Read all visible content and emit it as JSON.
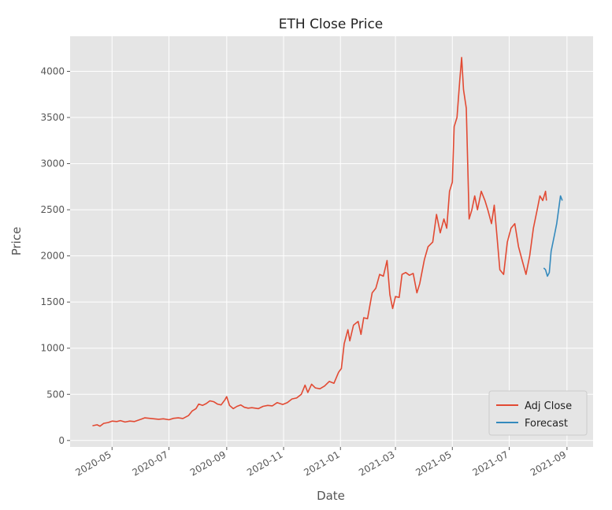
{
  "chart_data": {
    "type": "line",
    "title": "ETH Close Price",
    "xlabel": "Date",
    "ylabel": "Price",
    "x_tick_labels": [
      "2020-05",
      "2020-07",
      "2020-09",
      "2020-11",
      "2021-01",
      "2021-03",
      "2021-05",
      "2021-07",
      "2021-09"
    ],
    "y_ticks": [
      0,
      500,
      1000,
      1500,
      2000,
      2500,
      3000,
      3500,
      4000
    ],
    "xlim": [
      "2020-03-17",
      "2021-09-29"
    ],
    "ylim": [
      -70,
      4380
    ],
    "grid": true,
    "legend_position": "bottom-right",
    "series": [
      {
        "name": "Adj Close",
        "color": "#e24a33",
        "points": [
          [
            "2020-04-10",
            160
          ],
          [
            "2020-04-15",
            170
          ],
          [
            "2020-04-18",
            155
          ],
          [
            "2020-04-22",
            185
          ],
          [
            "2020-04-27",
            195
          ],
          [
            "2020-05-01",
            210
          ],
          [
            "2020-05-06",
            205
          ],
          [
            "2020-05-10",
            215
          ],
          [
            "2020-05-15",
            200
          ],
          [
            "2020-05-20",
            210
          ],
          [
            "2020-05-25",
            205
          ],
          [
            "2020-06-01",
            230
          ],
          [
            "2020-06-05",
            245
          ],
          [
            "2020-06-10",
            240
          ],
          [
            "2020-06-15",
            235
          ],
          [
            "2020-06-20",
            230
          ],
          [
            "2020-06-25",
            235
          ],
          [
            "2020-07-01",
            225
          ],
          [
            "2020-07-06",
            240
          ],
          [
            "2020-07-11",
            245
          ],
          [
            "2020-07-16",
            238
          ],
          [
            "2020-07-22",
            270
          ],
          [
            "2020-07-26",
            320
          ],
          [
            "2020-07-30",
            345
          ],
          [
            "2020-08-02",
            395
          ],
          [
            "2020-08-06",
            380
          ],
          [
            "2020-08-10",
            400
          ],
          [
            "2020-08-14",
            430
          ],
          [
            "2020-08-18",
            420
          ],
          [
            "2020-08-22",
            395
          ],
          [
            "2020-08-26",
            385
          ],
          [
            "2020-08-30",
            440
          ],
          [
            "2020-09-01",
            475
          ],
          [
            "2020-09-04",
            380
          ],
          [
            "2020-09-08",
            345
          ],
          [
            "2020-09-12",
            370
          ],
          [
            "2020-09-16",
            385
          ],
          [
            "2020-09-20",
            360
          ],
          [
            "2020-09-24",
            350
          ],
          [
            "2020-09-28",
            355
          ],
          [
            "2020-10-05",
            345
          ],
          [
            "2020-10-10",
            370
          ],
          [
            "2020-10-15",
            380
          ],
          [
            "2020-10-20",
            375
          ],
          [
            "2020-10-25",
            410
          ],
          [
            "2020-10-31",
            390
          ],
          [
            "2020-11-05",
            410
          ],
          [
            "2020-11-10",
            450
          ],
          [
            "2020-11-15",
            460
          ],
          [
            "2020-11-20",
            500
          ],
          [
            "2020-11-24",
            600
          ],
          [
            "2020-11-27",
            520
          ],
          [
            "2020-12-01",
            610
          ],
          [
            "2020-12-05",
            570
          ],
          [
            "2020-12-10",
            560
          ],
          [
            "2020-12-15",
            590
          ],
          [
            "2020-12-20",
            640
          ],
          [
            "2020-12-25",
            620
          ],
          [
            "2020-12-30",
            740
          ],
          [
            "2021-01-02",
            780
          ],
          [
            "2021-01-05",
            1050
          ],
          [
            "2021-01-09",
            1200
          ],
          [
            "2021-01-11",
            1080
          ],
          [
            "2021-01-15",
            1250
          ],
          [
            "2021-01-20",
            1290
          ],
          [
            "2021-01-23",
            1150
          ],
          [
            "2021-01-26",
            1330
          ],
          [
            "2021-01-30",
            1320
          ],
          [
            "2021-02-04",
            1600
          ],
          [
            "2021-02-08",
            1650
          ],
          [
            "2021-02-12",
            1800
          ],
          [
            "2021-02-16",
            1780
          ],
          [
            "2021-02-20",
            1950
          ],
          [
            "2021-02-23",
            1580
          ],
          [
            "2021-02-26",
            1430
          ],
          [
            "2021-03-01",
            1560
          ],
          [
            "2021-03-05",
            1550
          ],
          [
            "2021-03-08",
            1800
          ],
          [
            "2021-03-12",
            1820
          ],
          [
            "2021-03-16",
            1790
          ],
          [
            "2021-03-20",
            1810
          ],
          [
            "2021-03-24",
            1600
          ],
          [
            "2021-03-27",
            1700
          ],
          [
            "2021-04-01",
            1960
          ],
          [
            "2021-04-05",
            2100
          ],
          [
            "2021-04-10",
            2150
          ],
          [
            "2021-04-14",
            2450
          ],
          [
            "2021-04-18",
            2250
          ],
          [
            "2021-04-22",
            2400
          ],
          [
            "2021-04-25",
            2300
          ],
          [
            "2021-04-28",
            2700
          ],
          [
            "2021-05-01",
            2800
          ],
          [
            "2021-05-03",
            3400
          ],
          [
            "2021-05-06",
            3500
          ],
          [
            "2021-05-09",
            3900
          ],
          [
            "2021-05-11",
            4150
          ],
          [
            "2021-05-13",
            3800
          ],
          [
            "2021-05-16",
            3600
          ],
          [
            "2021-05-19",
            2400
          ],
          [
            "2021-05-22",
            2500
          ],
          [
            "2021-05-25",
            2650
          ],
          [
            "2021-05-28",
            2500
          ],
          [
            "2021-06-01",
            2700
          ],
          [
            "2021-06-05",
            2600
          ],
          [
            "2021-06-08",
            2500
          ],
          [
            "2021-06-12",
            2350
          ],
          [
            "2021-06-15",
            2550
          ],
          [
            "2021-06-18",
            2200
          ],
          [
            "2021-06-21",
            1850
          ],
          [
            "2021-06-25",
            1800
          ],
          [
            "2021-06-29",
            2150
          ],
          [
            "2021-07-03",
            2300
          ],
          [
            "2021-07-07",
            2350
          ],
          [
            "2021-07-11",
            2100
          ],
          [
            "2021-07-15",
            1950
          ],
          [
            "2021-07-19",
            1800
          ],
          [
            "2021-07-23",
            2000
          ],
          [
            "2021-07-27",
            2300
          ],
          [
            "2021-07-31",
            2500
          ],
          [
            "2021-08-03",
            2650
          ],
          [
            "2021-08-06",
            2600
          ],
          [
            "2021-08-09",
            2700
          ],
          [
            "2021-08-10",
            2600
          ]
        ]
      },
      {
        "name": "Forecast",
        "color": "#348abd",
        "points": [
          [
            "2021-08-07",
            1870
          ],
          [
            "2021-08-09",
            1850
          ],
          [
            "2021-08-11",
            1780
          ],
          [
            "2021-08-13",
            1820
          ],
          [
            "2021-08-15",
            2050
          ],
          [
            "2021-08-17",
            2150
          ],
          [
            "2021-08-19",
            2250
          ],
          [
            "2021-08-21",
            2350
          ],
          [
            "2021-08-23",
            2500
          ],
          [
            "2021-08-25",
            2650
          ],
          [
            "2021-08-27",
            2600
          ]
        ]
      }
    ]
  }
}
